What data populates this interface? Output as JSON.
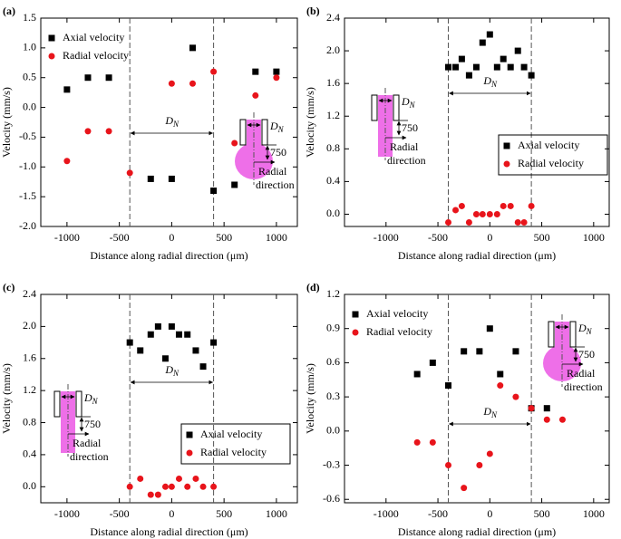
{
  "chart_data": [
    {
      "type": "scatter",
      "label": "(a)",
      "xlabel": "Distance along radial direction (μm)",
      "ylabel": "Velocity (mm/s)",
      "xlim": [
        -1250,
        1200
      ],
      "xticks": [
        -1000,
        -500,
        0,
        500,
        1000
      ],
      "ylim": [
        -2.0,
        1.5
      ],
      "yticks": [
        {
          "value": -2,
          "label": "-2.0"
        },
        -1.5,
        {
          "value": -1,
          "label": "-1.0"
        },
        -0.5,
        {
          "value": 0,
          "label": "0.0"
        },
        0.5,
        {
          "value": 1,
          "label": "1.0"
        },
        1.5
      ],
      "legend": "upper left",
      "legend_frame": false,
      "reference_lines": [
        -400,
        400
      ],
      "span_label": [
        "D",
        "N"
      ],
      "inset": {
        "width_label": [
          "D",
          "N"
        ],
        "depth_label": "750",
        "direction_label": [
          "Radial",
          "direction"
        ],
        "shape": "blob"
      },
      "series": [
        {
          "name": "Axial velocity",
          "color": "#000000",
          "marker": "square",
          "x": [
            -1000,
            -800,
            -600,
            -200,
            0,
            200,
            400,
            600,
            800,
            1000
          ],
          "values": [
            0.3,
            0.5,
            0.5,
            -1.2,
            -1.2,
            1.0,
            -1.4,
            -1.3,
            0.6,
            0.6
          ]
        },
        {
          "name": "Radial velocity",
          "color": "#e8141b",
          "marker": "circle",
          "x": [
            -1000,
            -800,
            -600,
            -400,
            0,
            200,
            400,
            600,
            800,
            1000
          ],
          "values": [
            -0.9,
            -0.4,
            -0.4,
            -1.1,
            0.4,
            0.4,
            0.6,
            -0.6,
            0.2,
            0.5
          ]
        }
      ]
    },
    {
      "type": "scatter",
      "label": "(b)",
      "xlabel": "Distance along radial direction (μm)",
      "ylabel": "Velocity (mm/s)",
      "xlim": [
        -1400,
        1150
      ],
      "xticks": [
        -1000,
        -500,
        0,
        500,
        1000
      ],
      "ylim": [
        -0.15,
        2.4
      ],
      "yticks": [
        {
          "value": 0,
          "label": "0.0"
        },
        0.4,
        0.8,
        1.2,
        1.6,
        {
          "value": 2,
          "label": "2.0"
        },
        2.4
      ],
      "legend": "center right",
      "legend_frame": true,
      "reference_lines": [
        -400,
        400
      ],
      "span_label": [
        "D",
        "N"
      ],
      "inset": {
        "width_label": [
          "D",
          "N"
        ],
        "depth_label": "750",
        "direction_label": [
          "Radial",
          "direction"
        ],
        "shape": "column"
      },
      "series": [
        {
          "name": "Axial velocity",
          "color": "#000000",
          "marker": "square",
          "x": [
            -400,
            -330,
            -270,
            -200,
            -130,
            -70,
            0,
            70,
            130,
            200,
            270,
            330,
            400
          ],
          "values": [
            1.8,
            1.8,
            1.9,
            1.7,
            1.8,
            2.1,
            2.2,
            1.8,
            1.9,
            1.8,
            2.0,
            1.8,
            1.7
          ]
        },
        {
          "name": "Radial velocity",
          "color": "#e8141b",
          "marker": "circle",
          "x": [
            -400,
            -330,
            -270,
            -200,
            -130,
            -70,
            0,
            70,
            130,
            200,
            270,
            330,
            400
          ],
          "values": [
            -0.1,
            0.05,
            0.1,
            -0.1,
            0.0,
            0.0,
            0.0,
            0.0,
            0.1,
            0.1,
            -0.1,
            -0.1,
            0.1
          ]
        }
      ]
    },
    {
      "type": "scatter",
      "label": "(c)",
      "xlabel": "Distance along radial direction (μm)",
      "ylabel": "Velocity (mm/s)",
      "xlim": [
        -1250,
        1200
      ],
      "xticks": [
        -1000,
        -500,
        0,
        500,
        1000
      ],
      "ylim": [
        -0.2,
        2.4
      ],
      "yticks": [
        {
          "value": 0,
          "label": "0.0"
        },
        0.4,
        0.8,
        1.2,
        1.6,
        {
          "value": 2,
          "label": "2.0"
        },
        2.4
      ],
      "legend": "lower right",
      "legend_frame": true,
      "reference_lines": [
        -400,
        400
      ],
      "span_label": [
        "D",
        "N"
      ],
      "inset": {
        "width_label": [
          "D",
          "N"
        ],
        "depth_label": "750",
        "direction_label": [
          "Radial",
          "direction"
        ],
        "shape": "column"
      },
      "series": [
        {
          "name": "Axial velocity",
          "color": "#000000",
          "marker": "square",
          "x": [
            -400,
            -300,
            -200,
            -130,
            -60,
            0,
            70,
            150,
            230,
            300,
            400
          ],
          "values": [
            1.8,
            1.7,
            1.9,
            2.0,
            1.6,
            2.0,
            1.9,
            1.9,
            1.7,
            1.5,
            1.8
          ]
        },
        {
          "name": "Radial velocity",
          "color": "#e8141b",
          "marker": "circle",
          "x": [
            -400,
            -300,
            -200,
            -130,
            -60,
            0,
            70,
            150,
            230,
            300,
            400
          ],
          "values": [
            0.0,
            0.1,
            -0.1,
            -0.1,
            0.0,
            0.0,
            0.1,
            0.0,
            0.1,
            0.0,
            0.0
          ]
        }
      ]
    },
    {
      "type": "scatter",
      "label": "(d)",
      "xlabel": "Distance along radial direction (μm)",
      "ylabel": "Velocity (mm/s)",
      "xlim": [
        -1400,
        1150
      ],
      "xticks": [
        -1000,
        -500,
        0,
        500,
        1000
      ],
      "ylim": [
        -0.63,
        1.2
      ],
      "yticks": [
        -0.6,
        -0.3,
        {
          "value": 0,
          "label": "0.0"
        },
        0.3,
        0.6,
        0.9,
        1.2
      ],
      "legend": "upper left",
      "legend_frame": false,
      "reference_lines": [
        -400,
        400
      ],
      "span_label": [
        "D",
        "N"
      ],
      "inset": {
        "width_label": [
          "D",
          "N"
        ],
        "depth_label": "750",
        "direction_label": [
          "Radial",
          "direction"
        ],
        "shape": "blob"
      },
      "series": [
        {
          "name": "Axial velocity",
          "color": "#000000",
          "marker": "square",
          "x": [
            -700,
            -550,
            -400,
            -250,
            -100,
            0,
            100,
            250,
            400,
            550
          ],
          "values": [
            0.5,
            0.6,
            0.4,
            0.7,
            0.7,
            0.9,
            0.5,
            0.7,
            0.2,
            0.2
          ]
        },
        {
          "name": "Radial velocity",
          "color": "#e8141b",
          "marker": "circle",
          "x": [
            -700,
            -550,
            -400,
            -250,
            -100,
            0,
            100,
            250,
            400,
            550,
            700
          ],
          "values": [
            -0.1,
            -0.1,
            -0.3,
            -0.5,
            -0.3,
            -0.2,
            0.4,
            0.3,
            0.2,
            0.1,
            0.1
          ]
        }
      ]
    }
  ]
}
